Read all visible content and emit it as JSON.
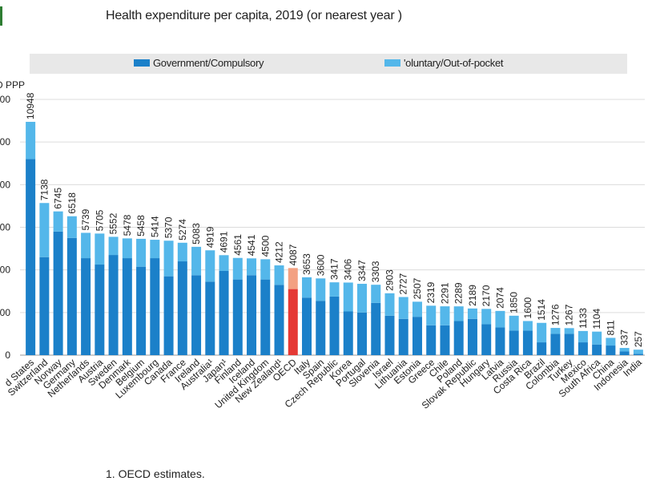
{
  "title": "Health expenditure per capita, 2019 (or nearest year  )",
  "footnote": "1. OECD estimates.",
  "colors": {
    "gov": "#1b80c9",
    "vol": "#54b7ea",
    "oecd_gov": "#e53935",
    "oecd_vol": "#f3a182",
    "grid": "#dcdcdc"
  },
  "chart_data": {
    "type": "bar",
    "stacked": true,
    "ylabel": "D PPP",
    "ylim": [
      0,
      12000
    ],
    "yticks": [
      "0",
      "00",
      "00",
      "00",
      "00",
      "00",
      "00"
    ],
    "yticks_visible": [
      true,
      true,
      true,
      true,
      true,
      true,
      true
    ],
    "grid": true,
    "legend": {
      "placement": "top",
      "entries": [
        "Government/Compulsory",
        "'oluntary/Out-of-pocket"
      ]
    },
    "categories": [
      "d States",
      "Switzerland",
      "Norway",
      "Germany",
      "Netherlands",
      "Austria",
      "Sweden",
      "Denmark",
      "Belgium",
      "Luxembourg",
      "Canada",
      "France",
      "Ireland",
      "Australia¹",
      "Japan¹",
      "Finland",
      "Iceland",
      "United Kingdom",
      "New Zealand¹",
      "OECD",
      "Italy",
      "Spain",
      "Czech Republic",
      "Korea",
      "Portugal",
      "Slovenia",
      "Israel",
      "Lithuania",
      "Estonia",
      "Greece",
      "Chile",
      "Poland",
      "Slovak Republic",
      "Hungary",
      "Latvia",
      "Russia",
      "Costa Rica",
      "Brazil",
      "Colombia",
      "Turkey",
      "Mexico",
      "South Africa",
      "China",
      "Indonesia",
      "India"
    ],
    "totals": [
      "10948",
      "7138",
      "6745",
      "6518",
      "5739",
      "5705",
      "5552",
      "5478",
      "5458",
      "5414",
      "5370",
      "5274",
      "5083",
      "4919",
      "4691",
      "4561",
      "4541",
      "4500",
      "4212",
      "4087",
      "3653",
      "3600",
      "3417",
      "3406",
      "3347",
      "3303",
      "2903",
      "2727",
      "2507",
      "2319",
      "2291",
      "2289",
      "2189",
      "2170",
      "2074",
      "1850",
      "1600",
      "1514",
      "1276",
      "1267",
      "1133",
      "1104",
      "811",
      "337",
      "257"
    ],
    "series": [
      {
        "name": "Government/Compulsory",
        "values": [
          9200,
          4600,
          5800,
          5500,
          4550,
          4250,
          4700,
          4550,
          4150,
          4550,
          3700,
          4400,
          3750,
          3450,
          3950,
          3550,
          3750,
          3550,
          3300,
          3100,
          2700,
          2550,
          2750,
          2050,
          2000,
          2450,
          1850,
          1700,
          1800,
          1400,
          1400,
          1600,
          1700,
          1450,
          1300,
          1150,
          1150,
          600,
          1000,
          1000,
          600,
          500,
          450,
          170,
          60
        ]
      },
      {
        "name": "Voluntary/Out-of-pocket",
        "values": [
          1748,
          2538,
          945,
          1018,
          1189,
          1455,
          852,
          928,
          1308,
          864,
          1670,
          874,
          1333,
          1469,
          741,
          1011,
          791,
          950,
          912,
          987,
          953,
          1050,
          667,
          1356,
          1347,
          853,
          1053,
          1027,
          707,
          919,
          891,
          689,
          489,
          720,
          774,
          700,
          450,
          914,
          276,
          267,
          533,
          604,
          361,
          167,
          197
        ]
      }
    ]
  }
}
